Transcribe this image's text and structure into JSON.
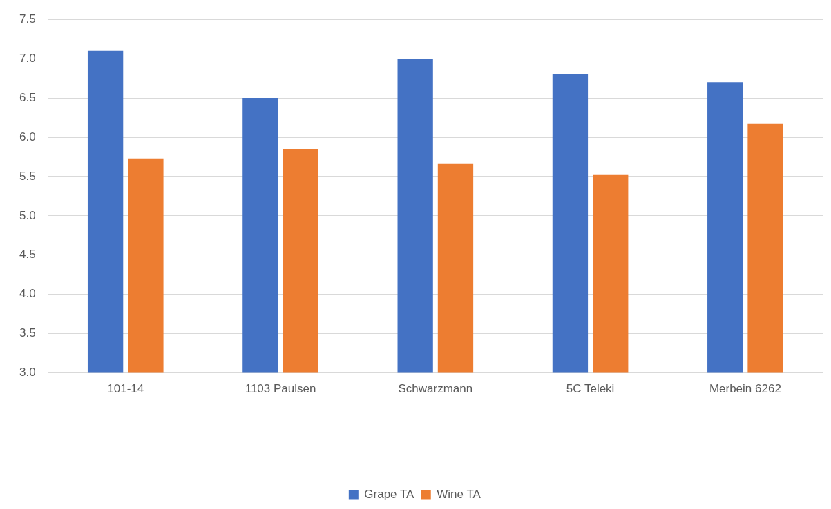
{
  "chart_data": {
    "type": "bar",
    "categories": [
      "101-14",
      "1103 Paulsen",
      "Schwarzmann",
      "5C Teleki",
      "Merbein 6262"
    ],
    "series": [
      {
        "name": "Grape TA",
        "color": "#4472c4",
        "values": [
          7.1,
          6.5,
          7.0,
          6.8,
          6.7
        ]
      },
      {
        "name": "Wine TA",
        "color": "#ed7d31",
        "values": [
          5.73,
          5.85,
          5.66,
          5.52,
          6.17
        ]
      }
    ],
    "ylim": [
      3.0,
      7.5
    ],
    "yticks": [
      {
        "value": 3,
        "label": "3.0"
      },
      {
        "value": 3.5,
        "label": "3.5"
      },
      {
        "value": 4,
        "label": "4.0"
      },
      {
        "value": 4.5,
        "label": "4.5"
      },
      {
        "value": 5,
        "label": "5.0"
      },
      {
        "value": 5.5,
        "label": "5.5"
      },
      {
        "value": 6,
        "label": "6.0"
      },
      {
        "value": 6.5,
        "label": "6.5"
      },
      {
        "value": 7,
        "label": "7.0"
      },
      {
        "value": 7.5,
        "label": "7.5"
      }
    ],
    "grid": "y",
    "legend": "bottom"
  }
}
